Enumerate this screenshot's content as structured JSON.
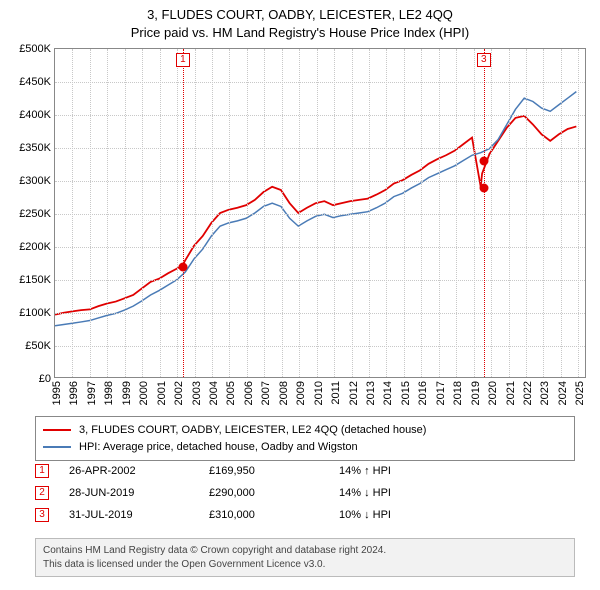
{
  "title": {
    "line1": "3, FLUDES COURT, OADBY, LEICESTER, LE2 4QQ",
    "line2": "Price paid vs. HM Land Registry's House Price Index (HPI)"
  },
  "chart": {
    "type": "line",
    "background_color": "#ffffff",
    "grid_color": "#c8c8c8",
    "border_color": "#888888",
    "xlim": [
      1995,
      2025.5
    ],
    "ylim": [
      0,
      500000
    ],
    "ytick_step": 50000,
    "ytick_labels": [
      "£0",
      "£50K",
      "£100K",
      "£150K",
      "£200K",
      "£250K",
      "£300K",
      "£350K",
      "£400K",
      "£450K",
      "£500K"
    ],
    "xtick_step": 1,
    "xtick_labels": [
      "1995",
      "1996",
      "1997",
      "1998",
      "1999",
      "2000",
      "2001",
      "2002",
      "2003",
      "2004",
      "2005",
      "2006",
      "2007",
      "2008",
      "2009",
      "2010",
      "2011",
      "2012",
      "2013",
      "2014",
      "2015",
      "2016",
      "2017",
      "2018",
      "2019",
      "2020",
      "2021",
      "2022",
      "2023",
      "2024",
      "2025"
    ],
    "label_fontsize": 11,
    "series": [
      {
        "name": "property",
        "label": "3, FLUDES COURT, OADBY, LEICESTER, LE2 4QQ (detached house)",
        "color": "#e00000",
        "width": 1.8,
        "data": [
          [
            1995,
            95000
          ],
          [
            1995.5,
            98000
          ],
          [
            1996,
            100000
          ],
          [
            1996.5,
            102000
          ],
          [
            1997,
            103000
          ],
          [
            1997.5,
            108000
          ],
          [
            1998,
            112000
          ],
          [
            1998.5,
            115000
          ],
          [
            1999,
            120000
          ],
          [
            1999.5,
            125000
          ],
          [
            2000,
            135000
          ],
          [
            2000.5,
            145000
          ],
          [
            2001,
            150000
          ],
          [
            2001.5,
            158000
          ],
          [
            2002,
            165000
          ],
          [
            2002.33,
            169950
          ],
          [
            2002.5,
            178000
          ],
          [
            2003,
            200000
          ],
          [
            2003.5,
            215000
          ],
          [
            2004,
            235000
          ],
          [
            2004.5,
            250000
          ],
          [
            2005,
            255000
          ],
          [
            2005.5,
            258000
          ],
          [
            2006,
            262000
          ],
          [
            2006.5,
            270000
          ],
          [
            2007,
            282000
          ],
          [
            2007.5,
            290000
          ],
          [
            2008,
            285000
          ],
          [
            2008.5,
            265000
          ],
          [
            2009,
            250000
          ],
          [
            2009.5,
            258000
          ],
          [
            2010,
            265000
          ],
          [
            2010.5,
            268000
          ],
          [
            2011,
            262000
          ],
          [
            2011.5,
            265000
          ],
          [
            2012,
            268000
          ],
          [
            2012.5,
            270000
          ],
          [
            2013,
            272000
          ],
          [
            2013.5,
            278000
          ],
          [
            2014,
            285000
          ],
          [
            2014.5,
            295000
          ],
          [
            2015,
            300000
          ],
          [
            2015.5,
            308000
          ],
          [
            2016,
            315000
          ],
          [
            2016.5,
            325000
          ],
          [
            2017,
            332000
          ],
          [
            2017.5,
            338000
          ],
          [
            2018,
            345000
          ],
          [
            2018.5,
            355000
          ],
          [
            2019,
            365000
          ],
          [
            2019.5,
            290000
          ],
          [
            2019.58,
            310000
          ],
          [
            2020,
            340000
          ],
          [
            2020.5,
            360000
          ],
          [
            2021,
            380000
          ],
          [
            2021.5,
            395000
          ],
          [
            2022,
            398000
          ],
          [
            2022.5,
            385000
          ],
          [
            2023,
            370000
          ],
          [
            2023.5,
            360000
          ],
          [
            2024,
            370000
          ],
          [
            2024.5,
            378000
          ],
          [
            2025,
            382000
          ]
        ]
      },
      {
        "name": "hpi",
        "label": "HPI: Average price, detached house, Oadby and Wigston",
        "color": "#4a7bb6",
        "width": 1.5,
        "data": [
          [
            1995,
            78000
          ],
          [
            1995.5,
            80000
          ],
          [
            1996,
            82000
          ],
          [
            1996.5,
            84000
          ],
          [
            1997,
            86000
          ],
          [
            1997.5,
            90000
          ],
          [
            1998,
            94000
          ],
          [
            1998.5,
            97000
          ],
          [
            1999,
            102000
          ],
          [
            1999.5,
            108000
          ],
          [
            2000,
            116000
          ],
          [
            2000.5,
            125000
          ],
          [
            2001,
            132000
          ],
          [
            2001.5,
            140000
          ],
          [
            2002,
            148000
          ],
          [
            2002.5,
            160000
          ],
          [
            2003,
            180000
          ],
          [
            2003.5,
            195000
          ],
          [
            2004,
            215000
          ],
          [
            2004.5,
            230000
          ],
          [
            2005,
            235000
          ],
          [
            2005.5,
            238000
          ],
          [
            2006,
            242000
          ],
          [
            2006.5,
            250000
          ],
          [
            2007,
            260000
          ],
          [
            2007.5,
            265000
          ],
          [
            2008,
            260000
          ],
          [
            2008.5,
            242000
          ],
          [
            2009,
            230000
          ],
          [
            2009.5,
            238000
          ],
          [
            2010,
            245000
          ],
          [
            2010.5,
            248000
          ],
          [
            2011,
            243000
          ],
          [
            2011.5,
            246000
          ],
          [
            2012,
            248000
          ],
          [
            2012.5,
            250000
          ],
          [
            2013,
            252000
          ],
          [
            2013.5,
            258000
          ],
          [
            2014,
            265000
          ],
          [
            2014.5,
            275000
          ],
          [
            2015,
            280000
          ],
          [
            2015.5,
            288000
          ],
          [
            2016,
            295000
          ],
          [
            2016.5,
            304000
          ],
          [
            2017,
            310000
          ],
          [
            2017.5,
            316000
          ],
          [
            2018,
            322000
          ],
          [
            2018.5,
            330000
          ],
          [
            2019,
            338000
          ],
          [
            2019.5,
            342000
          ],
          [
            2020,
            348000
          ],
          [
            2020.5,
            362000
          ],
          [
            2021,
            385000
          ],
          [
            2021.5,
            408000
          ],
          [
            2022,
            425000
          ],
          [
            2022.5,
            420000
          ],
          [
            2023,
            410000
          ],
          [
            2023.5,
            405000
          ],
          [
            2024,
            415000
          ],
          [
            2024.5,
            425000
          ],
          [
            2025,
            435000
          ]
        ]
      }
    ],
    "events": [
      {
        "id": "1",
        "x": 2002.33,
        "label_top": true
      },
      {
        "id": "3",
        "x": 2019.58,
        "label_top": true
      }
    ],
    "event_markers": [
      {
        "x": 2002.33,
        "y": 169950
      },
      {
        "x": 2019.58,
        "y": 330000
      },
      {
        "x": 2019.58,
        "y": 290000
      }
    ]
  },
  "legend": {
    "items": [
      {
        "color": "#e00000",
        "label": "3, FLUDES COURT, OADBY, LEICESTER, LE2 4QQ (detached house)"
      },
      {
        "color": "#4a7bb6",
        "label": "HPI: Average price, detached house, Oadby and Wigston"
      }
    ]
  },
  "events_table": {
    "rows": [
      {
        "id": "1",
        "date": "26-APR-2002",
        "price": "£169,950",
        "delta": "14% ↑ HPI"
      },
      {
        "id": "2",
        "date": "28-JUN-2019",
        "price": "£290,000",
        "delta": "14% ↓ HPI"
      },
      {
        "id": "3",
        "date": "31-JUL-2019",
        "price": "£310,000",
        "delta": "10% ↓ HPI"
      }
    ]
  },
  "footer": {
    "line1": "Contains HM Land Registry data © Crown copyright and database right 2024.",
    "line2": "This data is licensed under the Open Government Licence v3.0."
  }
}
